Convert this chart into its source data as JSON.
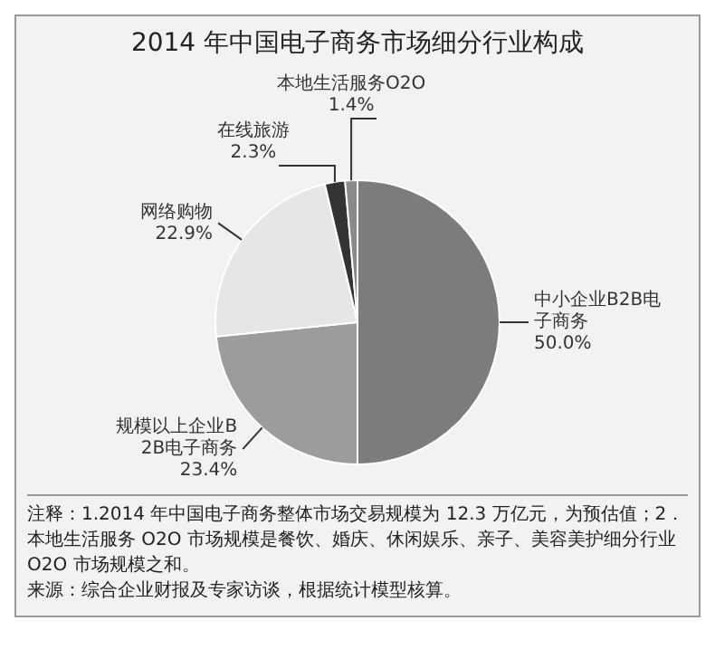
{
  "chart_data": {
    "type": "pie",
    "title": "2014 年中国电子商务市场细分行业构成",
    "categories": [
      "中小企业B2B电子商务",
      "规模以上企业B2B电子商务",
      "网络购物",
      "在线旅游",
      "本地生活服务O2O"
    ],
    "values": [
      50.0,
      23.4,
      22.9,
      2.3,
      1.4
    ],
    "value_labels": [
      "50.0%",
      "23.4%",
      "22.9%",
      "2.3%",
      "1.4%"
    ],
    "colors": [
      "#7c7c7c",
      "#9c9c9c",
      "#e6e6e6",
      "#333333",
      "#8a8a8a"
    ],
    "legend": false,
    "annotations": [
      "注释：1.2014 年中国电子商务整体市场交易规模为 12.3 万亿元，为预估值；2．本地生活服务 O2O 市场规模是餐饮、婚庆、休闲娱乐、亲子、美容美护细分行业 O2O 市场规模之和。",
      "来源：综合企业财报及专家访谈，根据统计模型核算。"
    ]
  }
}
